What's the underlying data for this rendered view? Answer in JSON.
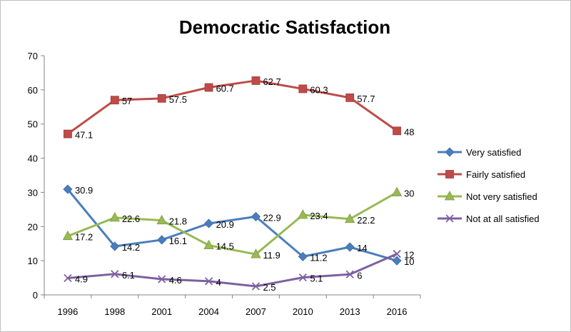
{
  "chart_data": {
    "type": "line",
    "title": "Democratic Satisfaction",
    "xlabel": "",
    "ylabel": "",
    "categories": [
      "1996",
      "1998",
      "2001",
      "2004",
      "2007",
      "2010",
      "2013",
      "2016"
    ],
    "ylim": [
      0,
      70
    ],
    "yticks": [
      0,
      10,
      20,
      30,
      40,
      50,
      60,
      70
    ],
    "grid": false,
    "legend_position": "right",
    "series": [
      {
        "name": "Very satisfied",
        "marker": "diamond",
        "color": "#4a7ebb",
        "values": [
          30.9,
          14.2,
          16.1,
          20.9,
          22.9,
          11.2,
          14,
          10
        ],
        "labels": [
          "30.9",
          "14.2",
          "16.1",
          "20.9",
          "22.9",
          "11.2",
          "14",
          "10"
        ]
      },
      {
        "name": "Fairly satisfied",
        "marker": "square",
        "color": "#be4b48",
        "values": [
          47.1,
          57,
          57.5,
          60.7,
          62.7,
          60.3,
          57.7,
          48
        ],
        "labels": [
          "47.1",
          "57",
          "57.5",
          "60.7",
          "62.7",
          "60.3",
          "57.7",
          "48"
        ]
      },
      {
        "name": "Not very satisfied",
        "marker": "triangle",
        "color": "#98b954",
        "values": [
          17.2,
          22.6,
          21.8,
          14.5,
          11.9,
          23.4,
          22.2,
          30
        ],
        "labels": [
          "17.2",
          "22.6",
          "21.8",
          "14.5",
          "11.9",
          "23.4",
          "22.2",
          "30"
        ]
      },
      {
        "name": "Not at all satisfied",
        "marker": "x",
        "color": "#7d60a0",
        "values": [
          4.9,
          6.1,
          4.6,
          4,
          2.5,
          5.1,
          6,
          12
        ],
        "labels": [
          "4.9",
          "6.1",
          "4.6",
          "4",
          "2.5",
          "5.1",
          "6",
          "12"
        ]
      }
    ]
  }
}
